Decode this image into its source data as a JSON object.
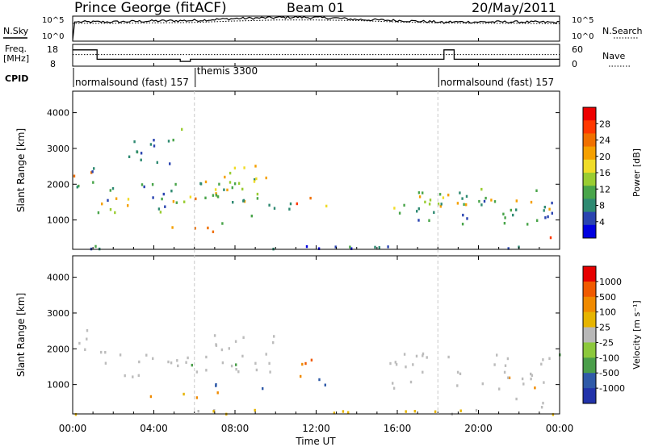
{
  "header": {
    "station": "Prince George (fitACF)",
    "beam": "Beam 01",
    "date": "20/May/2011"
  },
  "noise_panel": {
    "left_label": "N.Sky",
    "right_label": "N.Search",
    "left_ticks": [
      "10^5",
      "10^0"
    ],
    "right_ticks": [
      "10^5",
      "10^0"
    ],
    "sky_series": {
      "hours": [
        0,
        0.1,
        0.2,
        2,
        4,
        6,
        7,
        8,
        9,
        10,
        11,
        12,
        13,
        14,
        16,
        18,
        18.3,
        18.5,
        20,
        22,
        24
      ],
      "log10": [
        0.2,
        4.0,
        4.0,
        4.0,
        4.2,
        4.3,
        4.5,
        4.7,
        4.8,
        4.9,
        5.0,
        4.9,
        4.8,
        4.5,
        4.3,
        4.0,
        3.8,
        4.0,
        4.0,
        4.0,
        3.9
      ]
    },
    "search_series": {
      "hours": [
        0,
        2,
        4,
        6,
        8,
        10,
        12,
        14,
        16,
        18,
        20,
        22,
        24
      ],
      "log10": [
        3.7,
        3.7,
        3.8,
        3.9,
        4.2,
        4.4,
        4.4,
        4.3,
        4.0,
        3.8,
        3.7,
        3.7,
        3.6
      ]
    }
  },
  "freq_panel": {
    "left_label_1": "Freq.",
    "left_label_2": "[MHz]",
    "right_label": "Nave",
    "left_ticks": [
      "18",
      "8"
    ],
    "right_ticks": [
      "60",
      "0"
    ],
    "freq_series": {
      "hours": [
        0,
        1.2,
        1.2,
        5.3,
        5.3,
        5.8,
        5.8,
        18.3,
        18.3,
        18.8,
        18.8,
        24
      ],
      "mhz": [
        15.5,
        15.5,
        11.2,
        11.2,
        10.2,
        10.2,
        11.2,
        11.2,
        15.5,
        15.5,
        11.2,
        11.2
      ]
    },
    "nave_series": {
      "hours": [
        0,
        24
      ],
      "count": [
        32,
        32
      ]
    },
    "freq_ylim": [
      8,
      18
    ],
    "nave_ylim": [
      0,
      60
    ]
  },
  "cpid": {
    "label": "CPID",
    "segments": [
      {
        "text": "normalsound (fast) 157",
        "start": 0.0
      },
      {
        "text": "themis 3300",
        "start": 6.0
      },
      {
        "text": "normalsound (fast) 157",
        "start": 18.0
      }
    ]
  },
  "time_axis": {
    "label": "Time UT",
    "ticks": [
      "00:00",
      "04:00",
      "08:00",
      "12:00",
      "16:00",
      "20:00",
      "00:00"
    ],
    "xlim": [
      0,
      24
    ]
  },
  "colors": {
    "power": [
      "#0000e0",
      "#2a44b0",
      "#2f8a72",
      "#49a54a",
      "#9acd32",
      "#f0dc28",
      "#f5a000",
      "#f07000",
      "#ff3800",
      "#ee0000"
    ],
    "velocity": [
      "#2233aa",
      "#2f5aa8",
      "#4a9e4a",
      "#8cc83c",
      "#b8b8b8",
      "#e6b400",
      "#f08a00",
      "#f05a00",
      "#e60000"
    ],
    "ground": "#bcbcbc"
  },
  "chart_data": [
    {
      "type": "heatmap",
      "title": "Power",
      "xlabel": "Time UT",
      "ylabel": "Slant Range [km]",
      "xlim": [
        0,
        24
      ],
      "ylim": [
        180,
        4600
      ],
      "yticks": [
        "1000",
        "2000",
        "3000",
        "4000"
      ],
      "colorbar": {
        "label": "Power [dB]",
        "ticks": [
          "28",
          "24",
          "20",
          "16",
          "12",
          "8",
          "4"
        ],
        "range": [
          0,
          32
        ]
      },
      "features": [
        {
          "t0": 0.0,
          "t1": 1.2,
          "r0": 2050,
          "r1": 2380,
          "value": 20
        },
        {
          "t0": 0.0,
          "t1": 1.2,
          "r0": 1900,
          "r1": 2600,
          "value": 9
        },
        {
          "t0": 1.2,
          "t1": 5.8,
          "r0": 1400,
          "r1": 1750,
          "value": 21
        },
        {
          "t0": 1.2,
          "t1": 5.8,
          "r0": 1150,
          "r1": 2050,
          "value": 10
        },
        {
          "t0": 5.8,
          "t1": 9.2,
          "r0": 1550,
          "r1": 1900,
          "value": 22
        },
        {
          "t0": 5.8,
          "t1": 9.2,
          "r0": 1300,
          "r1": 2200,
          "value": 11
        },
        {
          "t0": 6.3,
          "t1": 9.4,
          "r0": 2050,
          "r1": 2450,
          "value": 17
        },
        {
          "t0": 7.8,
          "t1": 9.8,
          "r0": 2100,
          "r1": 2600,
          "value": 19
        },
        {
          "t0": 3.0,
          "t1": 7.5,
          "r0": 650,
          "r1": 850,
          "value": 22
        },
        {
          "t0": 7.0,
          "t1": 9.0,
          "r0": 900,
          "r1": 1150,
          "value": 13
        },
        {
          "t0": 9.2,
          "t1": 10.8,
          "r0": 1200,
          "r1": 1600,
          "value": 10
        },
        {
          "t0": 11.0,
          "t1": 12.0,
          "r0": 1400,
          "r1": 1700,
          "value": 22
        },
        {
          "t0": 12.1,
          "t1": 12.5,
          "r0": 1100,
          "r1": 1500,
          "value": 17
        },
        {
          "t0": 1.5,
          "t1": 5.0,
          "r0": 2600,
          "r1": 3300,
          "value": 7
        },
        {
          "t0": 4.5,
          "t1": 5.8,
          "r0": 3100,
          "r1": 3600,
          "value": 12
        },
        {
          "t0": 15.6,
          "t1": 18.3,
          "r0": 1300,
          "r1": 1800,
          "value": 18
        },
        {
          "t0": 15.6,
          "t1": 18.3,
          "r0": 1000,
          "r1": 1900,
          "value": 10
        },
        {
          "t0": 18.3,
          "t1": 18.9,
          "r0": 1700,
          "r1": 2300,
          "value": 24
        },
        {
          "t0": 18.8,
          "t1": 24.0,
          "r0": 1300,
          "r1": 1650,
          "value": 19
        },
        {
          "t0": 18.8,
          "t1": 24.0,
          "r0": 900,
          "r1": 1900,
          "value": 9
        },
        {
          "t0": 21.5,
          "t1": 23.6,
          "r0": 430,
          "r1": 620,
          "value": 26
        },
        {
          "t0": 0.0,
          "t1": 24.0,
          "r0": 200,
          "r1": 330,
          "value": 6
        }
      ]
    },
    {
      "type": "heatmap",
      "title": "Velocity",
      "xlabel": "Time UT",
      "ylabel": "Slant Range [km]",
      "xlim": [
        0,
        24
      ],
      "ylim": [
        180,
        4600
      ],
      "yticks": [
        "1000",
        "2000",
        "3000",
        "4000"
      ],
      "colorbar": {
        "label": "Velocity [m s⁻¹]",
        "ticks": [
          "1000",
          "500",
          "100",
          "25",
          "-25",
          "-100",
          "-500",
          "-1000"
        ]
      },
      "features": [
        {
          "t0": 0.0,
          "t1": 1.2,
          "r0": 2000,
          "r1": 2600,
          "value": 0
        },
        {
          "t0": 1.2,
          "t1": 5.8,
          "r0": 1200,
          "r1": 2000,
          "value": 0
        },
        {
          "t0": 5.8,
          "t1": 10.0,
          "r0": 1300,
          "r1": 2450,
          "value": 0
        },
        {
          "t0": 3.0,
          "t1": 7.5,
          "r0": 650,
          "r1": 850,
          "value": -150
        },
        {
          "t0": 7.0,
          "t1": 9.5,
          "r0": 850,
          "r1": 1150,
          "value": 150
        },
        {
          "t0": 10.5,
          "t1": 12.0,
          "r0": 1250,
          "r1": 1750,
          "value": -300
        },
        {
          "t0": 12.0,
          "t1": 12.6,
          "r0": 900,
          "r1": 1400,
          "value": 150
        },
        {
          "t0": 15.6,
          "t1": 24.0,
          "r0": 900,
          "r1": 1900,
          "value": 0
        },
        {
          "t0": 21.0,
          "t1": 23.8,
          "r0": 400,
          "r1": 650,
          "value": 0
        },
        {
          "t0": 0.0,
          "t1": 24.0,
          "r0": 200,
          "r1": 330,
          "value": -50
        }
      ]
    }
  ]
}
